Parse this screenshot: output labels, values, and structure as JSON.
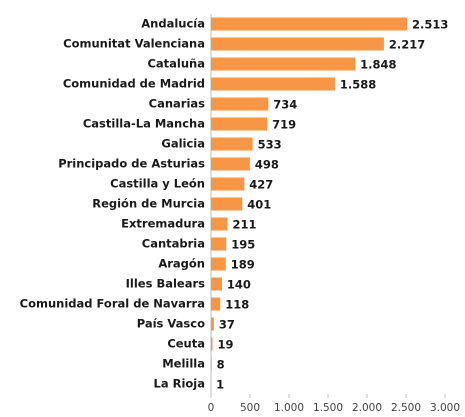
{
  "chart_data": {
    "type": "bar",
    "orientation": "horizontal",
    "color": "#f79646",
    "categories": [
      "Andalucía",
      "Comunitat Valenciana",
      "Cataluña",
      "Comunidad de Madrid",
      "Canarias",
      "Castilla-La Mancha",
      "Galicia",
      "Principado de Asturias",
      "Castilla y León",
      "Región de Murcia",
      "Extremadura",
      "Cantabria",
      "Aragón",
      "Illes Balears",
      "Comunidad Foral de Navarra",
      "País Vasco",
      "Ceuta",
      "Melilla",
      "La Rioja"
    ],
    "values": [
      2513,
      2217,
      1848,
      1588,
      734,
      719,
      533,
      498,
      427,
      401,
      211,
      195,
      189,
      140,
      118,
      37,
      19,
      8,
      1
    ],
    "value_labels": [
      "2.513",
      "2.217",
      "1.848",
      "1.588",
      "734",
      "719",
      "533",
      "498",
      "427",
      "401",
      "211",
      "195",
      "189",
      "140",
      "118",
      "37",
      "19",
      "8",
      "1"
    ],
    "xlim": [
      0,
      3000
    ],
    "xticks": [
      0,
      500,
      {
        "value": 1000,
        "label": "1.000"
      },
      {
        "value": 1500,
        "label": "1.500"
      },
      {
        "value": 2000,
        "label": "2.000"
      },
      {
        "value": 2500,
        "label": "2.500"
      },
      {
        "value": 3000,
        "label": "3.000"
      }
    ],
    "grid": false
  }
}
